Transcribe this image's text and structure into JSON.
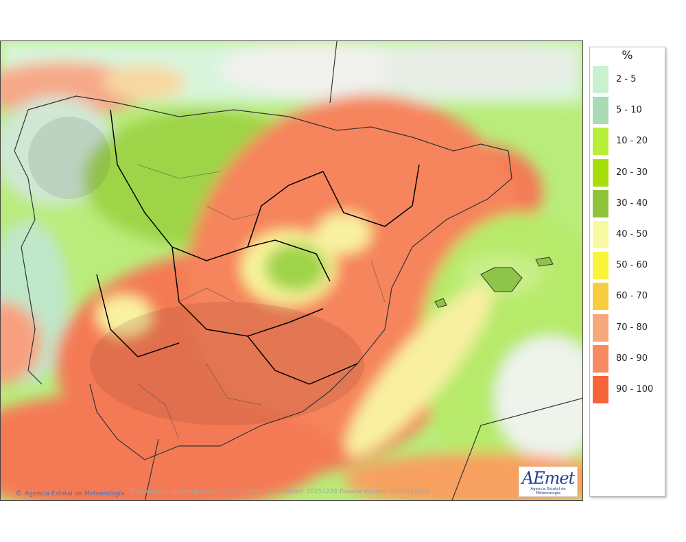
{
  "map": {
    "credit": "Agencia Estatal de Meteorología",
    "caption": "Probabilidad de precipitación > 0.5 mm en 24 h Validez: 20251228 Pasada modelo: 2025122600",
    "logo_text": "AEmet",
    "logo_subtitle": "Agencia Estatal de Meteorología"
  },
  "legend": {
    "unit": "%",
    "items": [
      {
        "label": "2 - 5",
        "color": "#c7f2d2"
      },
      {
        "label": "5 - 10",
        "color": "#a9dcb4"
      },
      {
        "label": "10 - 20",
        "color": "#b8ef3a"
      },
      {
        "label": "20 - 30",
        "color": "#a6de0a"
      },
      {
        "label": "30 - 40",
        "color": "#8fc43a"
      },
      {
        "label": "40 - 50",
        "color": "#f8f8a0"
      },
      {
        "label": "50 - 60",
        "color": "#f9f43a"
      },
      {
        "label": "60 - 70",
        "color": "#f9cd3e"
      },
      {
        "label": "70 - 80",
        "color": "#f7a87a"
      },
      {
        "label": "80 - 90",
        "color": "#f78a60"
      },
      {
        "label": "90 - 100",
        "color": "#f8643a"
      }
    ]
  }
}
